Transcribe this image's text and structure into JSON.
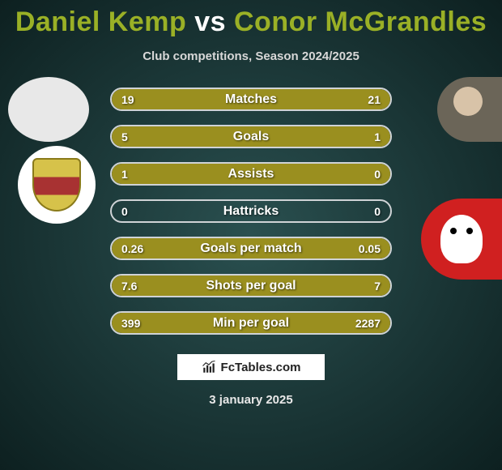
{
  "header": {
    "player1": "Daniel Kemp",
    "vs": "vs",
    "player2": "Conor McGrandles",
    "subtitle": "Club competitions, Season 2024/2025"
  },
  "chart": {
    "type": "split-bar-comparison",
    "bar_color": "#9a8f1f",
    "border_color": "#cfd3d6",
    "text_color": "#ffffff",
    "rows": [
      {
        "label": "Matches",
        "left_val": "19",
        "right_val": "21",
        "left_pct": 47.5,
        "right_pct": 52.5
      },
      {
        "label": "Goals",
        "left_val": "5",
        "right_val": "1",
        "left_pct": 83.3,
        "right_pct": 16.7
      },
      {
        "label": "Assists",
        "left_val": "1",
        "right_val": "0",
        "left_pct": 100,
        "right_pct": 0
      },
      {
        "label": "Hattricks",
        "left_val": "0",
        "right_val": "0",
        "left_pct": 0,
        "right_pct": 0
      },
      {
        "label": "Goals per match",
        "left_val": "0.26",
        "right_val": "0.05",
        "left_pct": 83.9,
        "right_pct": 16.1
      },
      {
        "label": "Shots per goal",
        "left_val": "7.6",
        "right_val": "7",
        "left_pct": 52.1,
        "right_pct": 47.9
      },
      {
        "label": "Min per goal",
        "left_val": "399",
        "right_val": "2287",
        "left_pct": 14.9,
        "right_pct": 85.1
      }
    ]
  },
  "footer": {
    "brand": "FcTables.com",
    "date": "3 january 2025"
  },
  "colors": {
    "accent": "#9ab026",
    "bg_inner": "#2a5050",
    "bg_outer": "#0d2020",
    "club_right_bg": "#d02020"
  }
}
